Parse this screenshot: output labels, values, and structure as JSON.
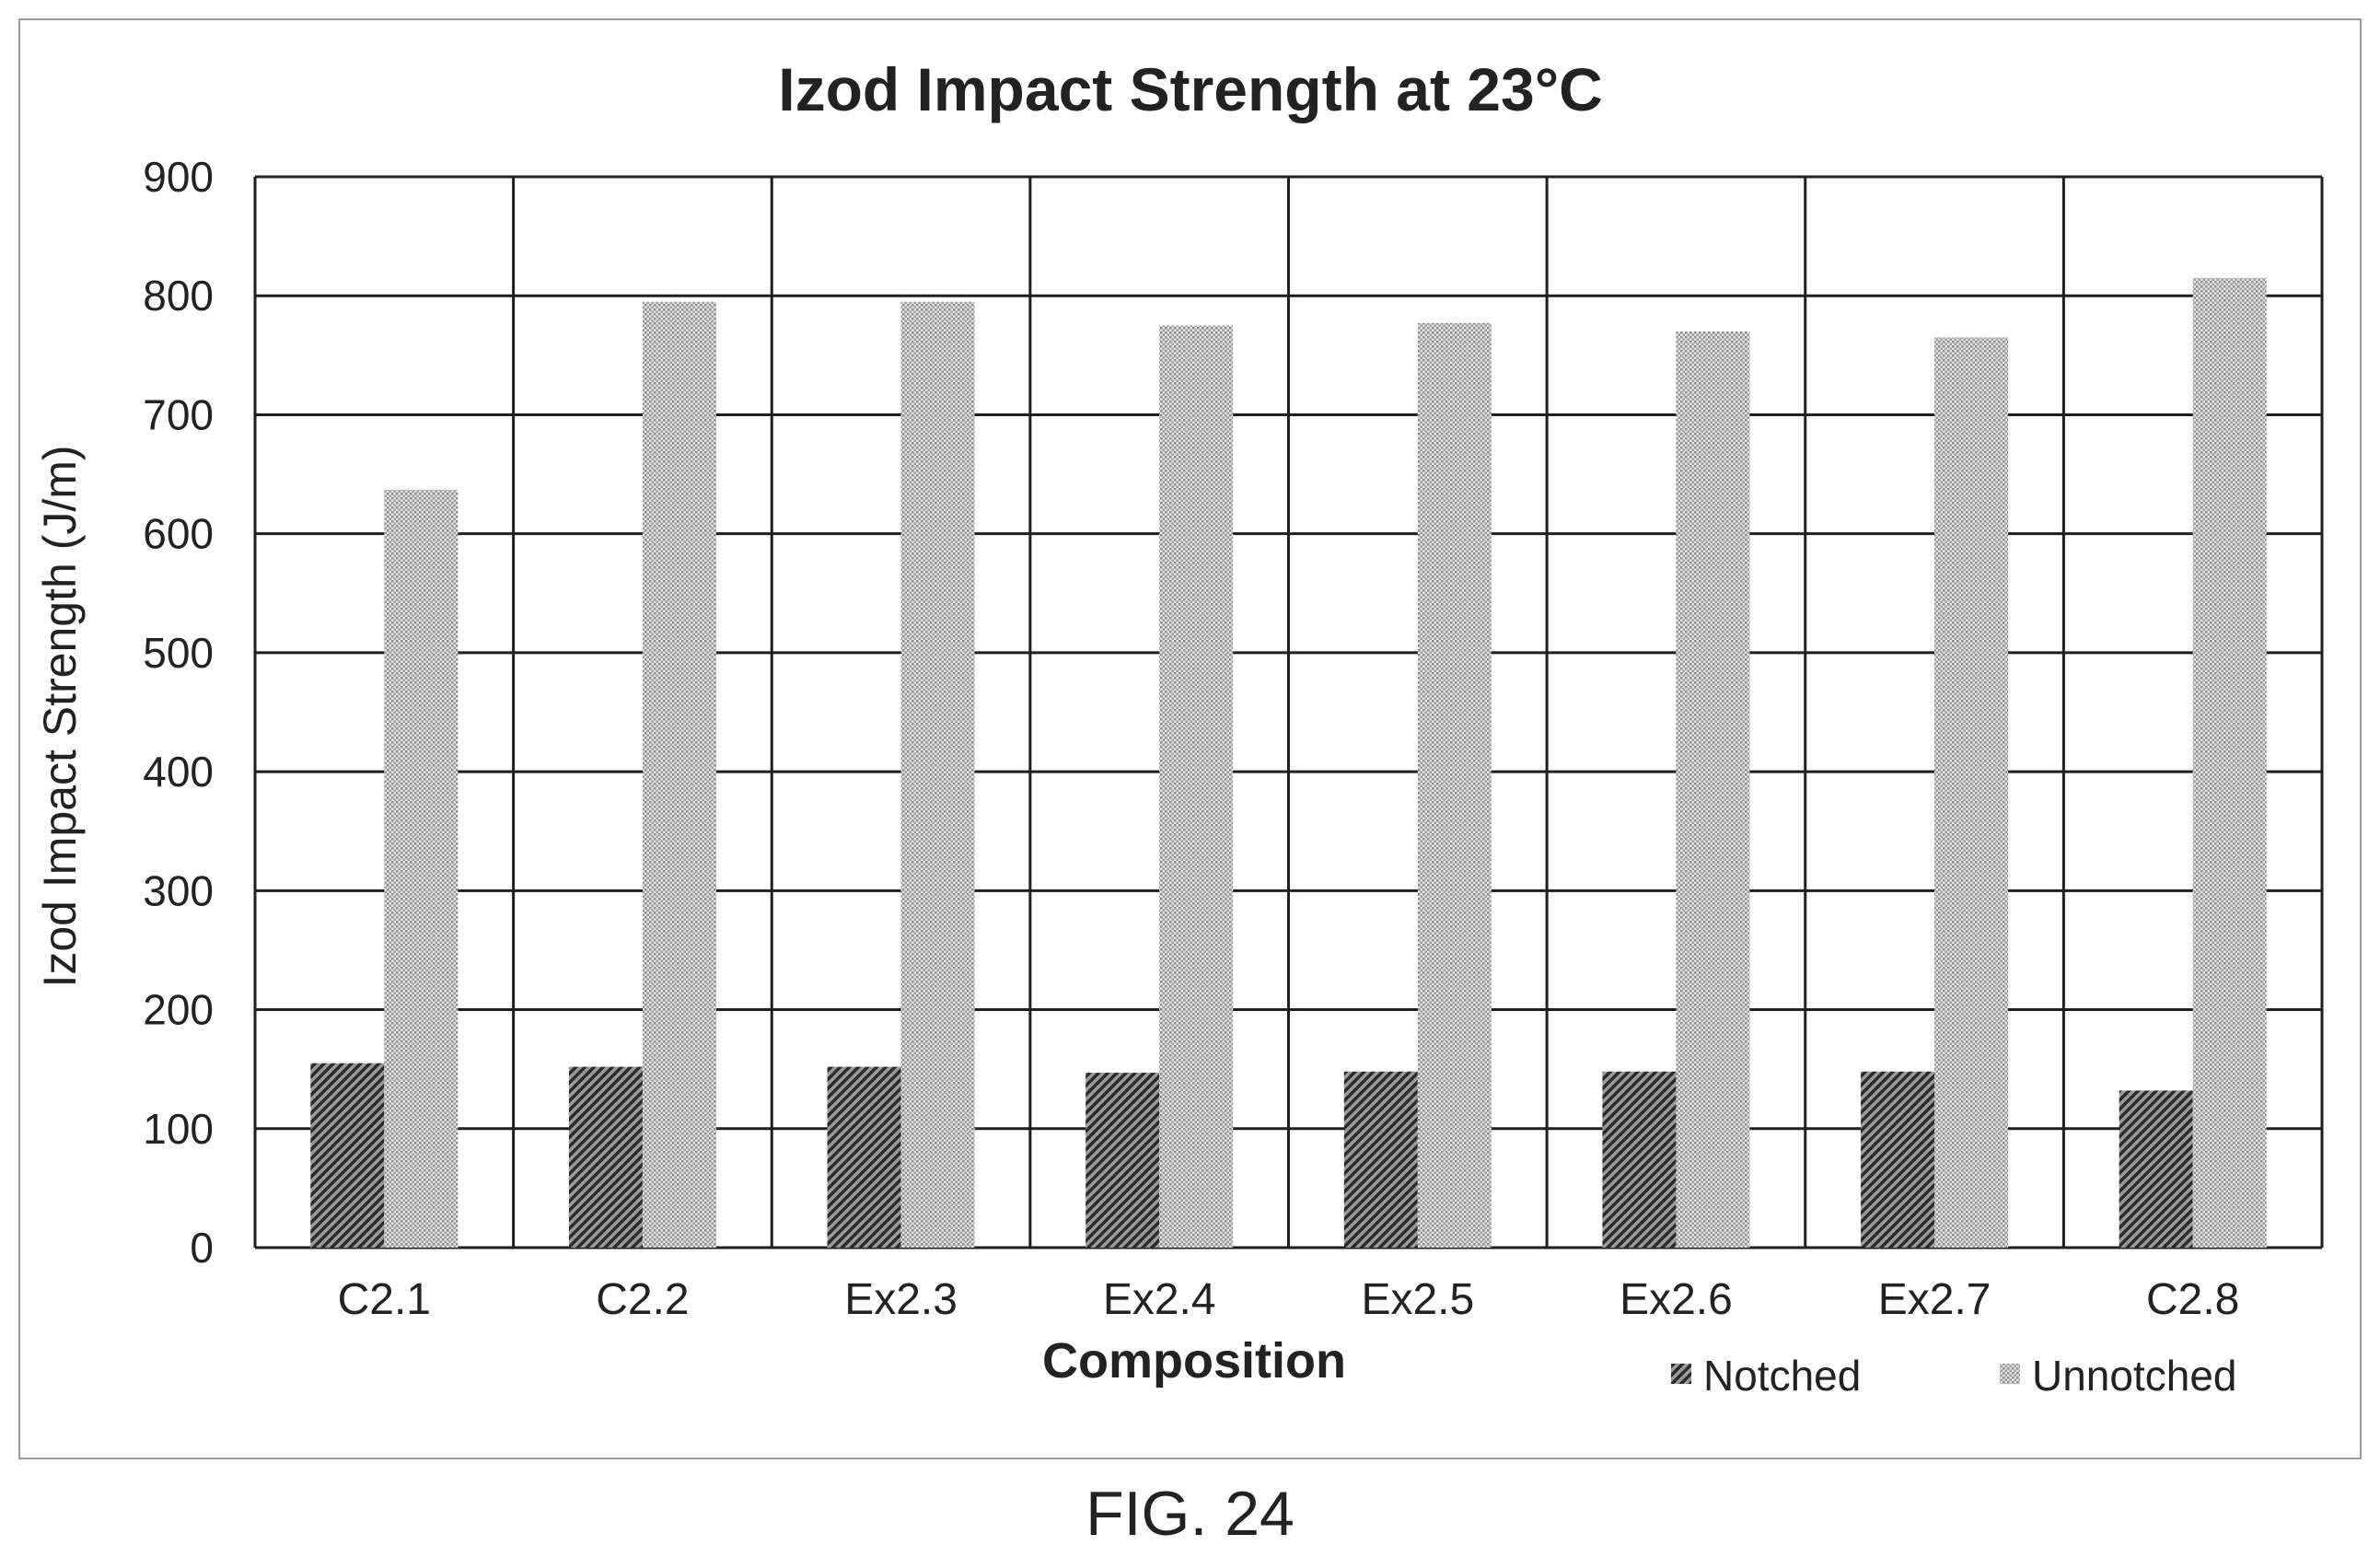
{
  "figure_label": "FIG. 24",
  "chart_data": {
    "type": "bar",
    "title": "Izod Impact Strength at 23°C",
    "xlabel": "Composition",
    "ylabel": "Izod Impact Strength (J/m)",
    "categories": [
      "C2.1",
      "C2.2",
      "Ex2.3",
      "Ex2.4",
      "Ex2.5",
      "Ex2.6",
      "Ex2.7",
      "C2.8"
    ],
    "series": [
      {
        "name": "Notched",
        "values": [
          155,
          152,
          152,
          147,
          148,
          148,
          148,
          132
        ]
      },
      {
        "name": "Unnotched",
        "values": [
          637,
          795,
          795,
          775,
          777,
          770,
          765,
          815
        ]
      }
    ],
    "ylim": [
      0,
      900
    ],
    "yticks": [
      0,
      100,
      200,
      300,
      400,
      500,
      600,
      700,
      800,
      900
    ],
    "grid": true,
    "legend_position": "bottom-right"
  }
}
